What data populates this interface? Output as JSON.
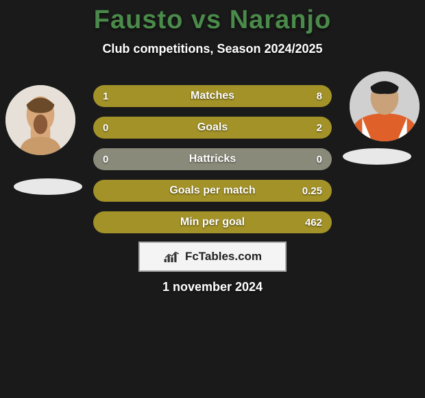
{
  "title_color": "#4a8a4a",
  "title": "Fausto vs Naranjo",
  "subtitle": "Club competitions, Season 2024/2025",
  "date_text": "1 november 2024",
  "branding_text": "FcTables.com",
  "colors": {
    "left": "#a39228",
    "neutral": "#8a8a7a",
    "background": "#1a1a1a",
    "text": "#ffffff"
  },
  "bars": [
    {
      "label": "Matches",
      "left": "1",
      "right": "8",
      "left_pct": 11,
      "right_pct": 89,
      "left_color": "#a39228",
      "right_color": "#a39228"
    },
    {
      "label": "Goals",
      "left": "0",
      "right": "2",
      "left_pct": 0,
      "right_pct": 100,
      "left_color": "#a39228",
      "right_color": "#a39228"
    },
    {
      "label": "Hattricks",
      "left": "0",
      "right": "0",
      "left_pct": 0,
      "right_pct": 0,
      "neutral_color": "#8a8a7a"
    },
    {
      "label": "Goals per match",
      "left": "",
      "right": "0.25",
      "left_pct": 0,
      "right_pct": 100,
      "left_color": "#a39228",
      "right_color": "#a39228"
    },
    {
      "label": "Min per goal",
      "left": "",
      "right": "462",
      "left_pct": 0,
      "right_pct": 100,
      "left_color": "#a39228",
      "right_color": "#a39228"
    }
  ],
  "bar_style": {
    "height": 32,
    "gap": 14,
    "radius": 16,
    "label_fontsize": 16,
    "value_fontsize": 15
  }
}
